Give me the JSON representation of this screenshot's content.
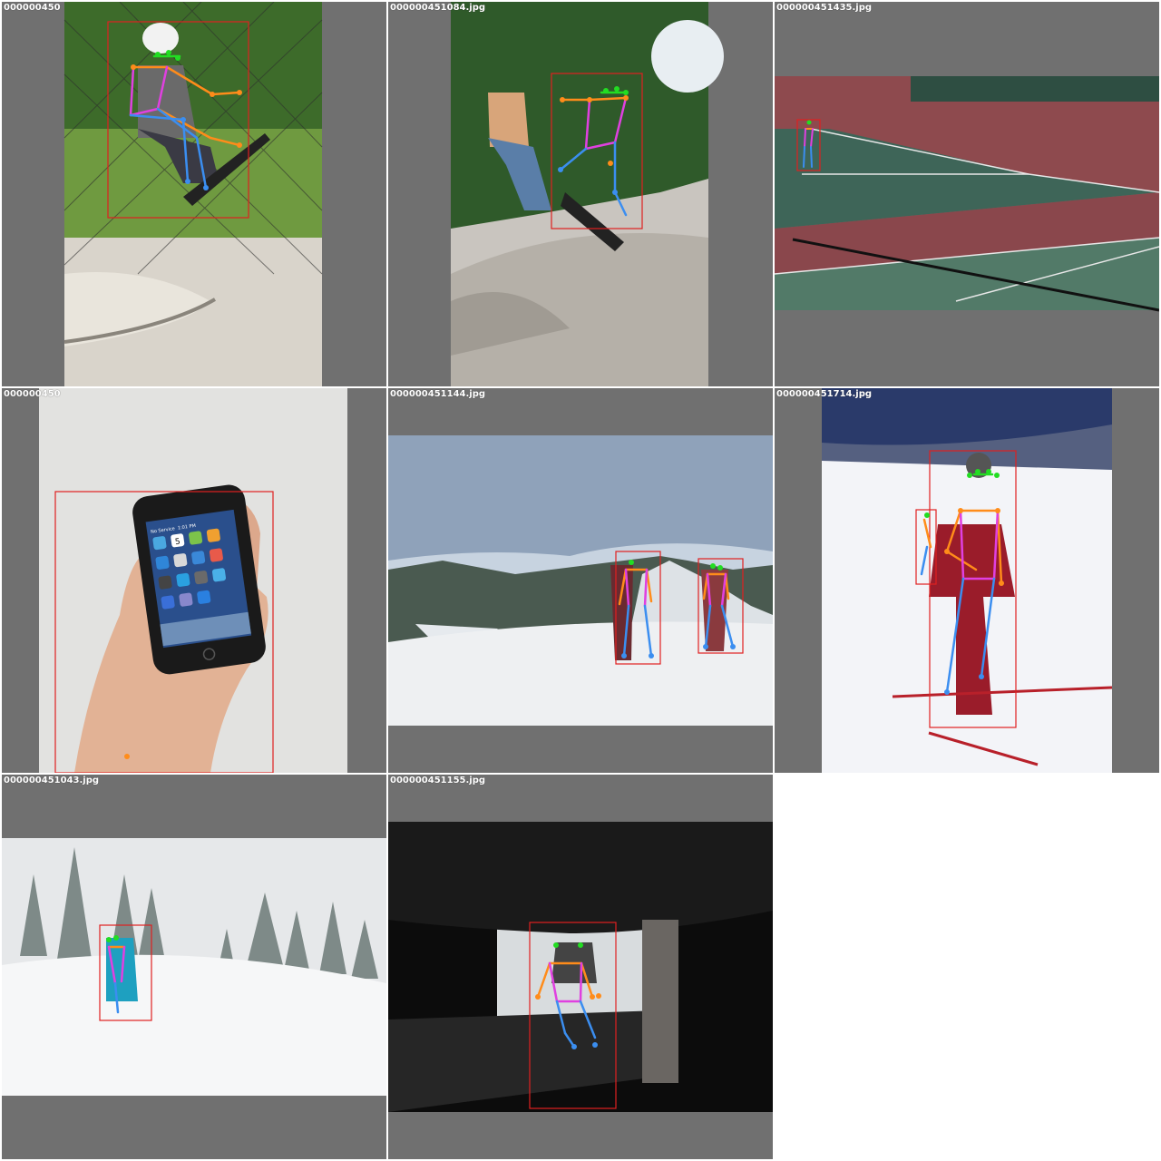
{
  "grid": {
    "tiles": [
      {
        "filename": "000000450",
        "scene": "skatepark-fence"
      },
      {
        "filename": "000000451084.jpg",
        "scene": "skatepark-bowl"
      },
      {
        "filename": "000000451435.jpg",
        "scene": "tennis-court"
      },
      {
        "filename": "000000450",
        "scene": "iphone-hand"
      },
      {
        "filename": "000000451144.jpg",
        "scene": "mountain-hikers"
      },
      {
        "filename": "000000451714.jpg",
        "scene": "skier-slope"
      },
      {
        "filename": "000000451043.jpg",
        "scene": "snowboarder-trees"
      },
      {
        "filename": "000000451155.jpg",
        "scene": "dark-bunk-bed"
      }
    ]
  },
  "phone": {
    "time": "1:01 PM",
    "carrier": "No Service",
    "calendar_day": "5"
  },
  "colors": {
    "letterbox": "#707070",
    "bbox": "#e02020",
    "head_points": "#22dd22",
    "arm_lines": "#ff8c1a",
    "torso_lines": "#e040e0",
    "leg_lines": "#3b8ef0",
    "label": "#ffffff"
  }
}
